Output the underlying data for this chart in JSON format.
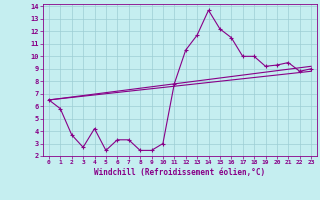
{
  "xlabel": "Windchill (Refroidissement éolien,°C)",
  "bg_color": "#c5eef0",
  "line_color": "#880088",
  "grid_color": "#9dcdd4",
  "xlim": [
    -0.5,
    23.5
  ],
  "ylim": [
    2,
    14.2
  ],
  "xticks": [
    0,
    1,
    2,
    3,
    4,
    5,
    6,
    7,
    8,
    9,
    10,
    11,
    12,
    13,
    14,
    15,
    16,
    17,
    18,
    19,
    20,
    21,
    22,
    23
  ],
  "yticks": [
    2,
    3,
    4,
    5,
    6,
    7,
    8,
    9,
    10,
    11,
    12,
    13,
    14
  ],
  "line1_x": [
    0,
    1,
    2,
    3,
    4,
    5,
    6,
    7,
    8,
    9,
    10,
    11,
    12,
    13,
    14,
    15,
    16,
    17,
    18,
    19,
    20,
    21,
    22,
    23
  ],
  "line1_y": [
    6.5,
    5.8,
    3.7,
    2.7,
    4.2,
    2.45,
    3.3,
    3.3,
    2.45,
    2.45,
    3.0,
    7.8,
    10.5,
    11.7,
    13.7,
    12.2,
    11.5,
    10.0,
    10.0,
    9.2,
    9.3,
    9.5,
    8.8,
    9.0
  ],
  "line2_x": [
    0,
    23
  ],
  "line2_y": [
    6.5,
    8.8
  ],
  "line3_x": [
    0,
    23
  ],
  "line3_y": [
    6.5,
    9.2
  ],
  "marker": "+",
  "markersize": 3,
  "linewidth": 0.8
}
